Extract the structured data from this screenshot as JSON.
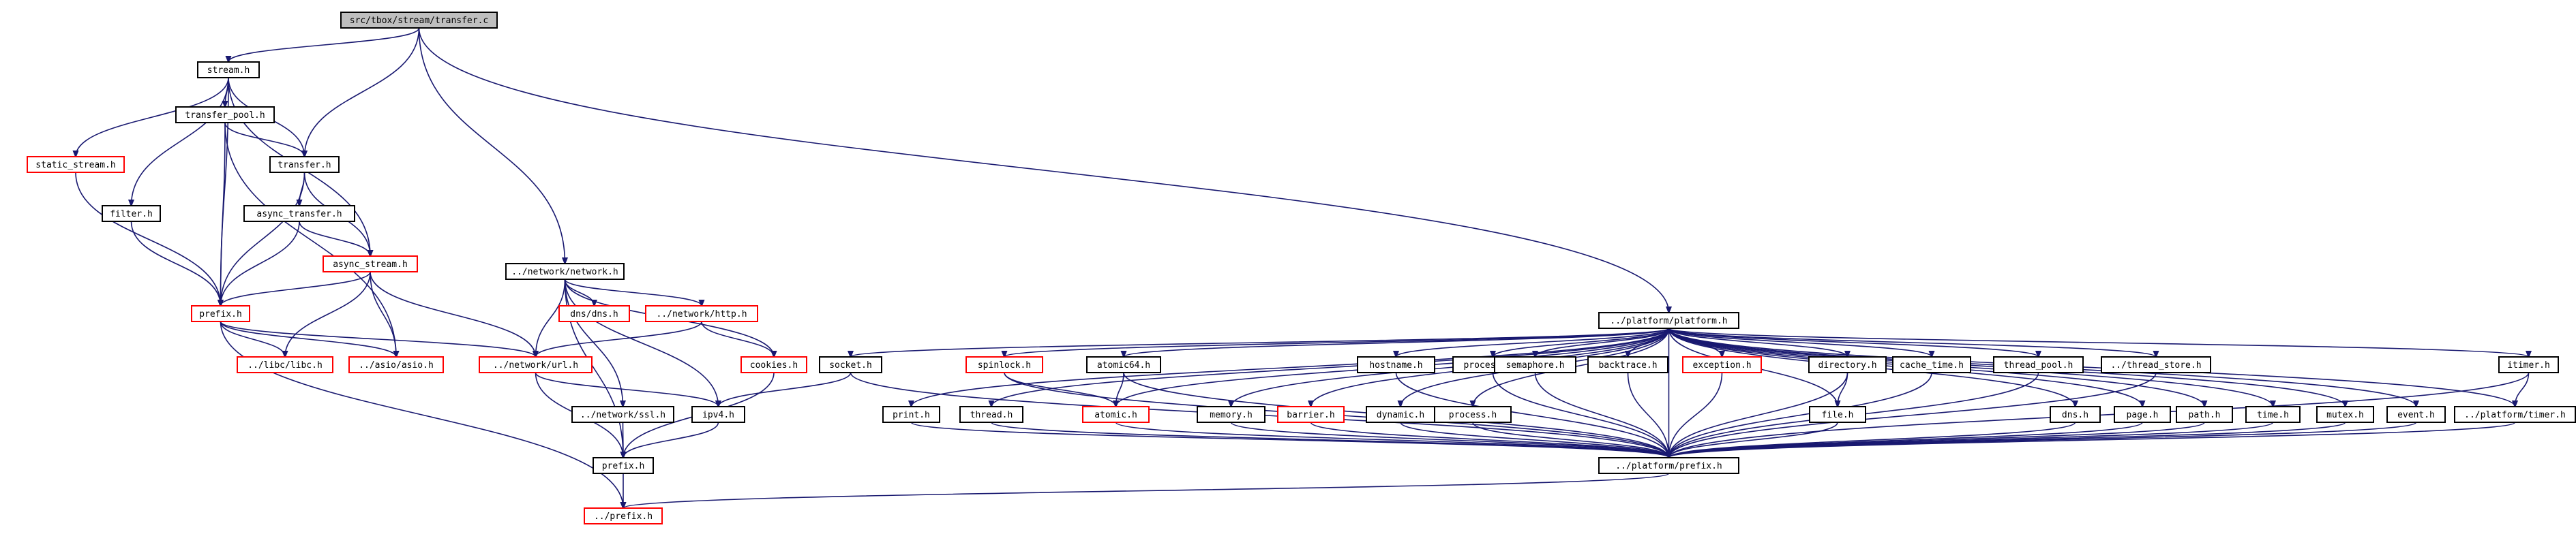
{
  "nodes": [
    {
      "id": "root",
      "label": "src/tbox/stream/transfer.c",
      "style": "root"
    },
    {
      "id": "stream",
      "label": "stream.h",
      "style": "normal"
    },
    {
      "id": "network",
      "label": "../network/network.h",
      "style": "normal"
    },
    {
      "id": "platform",
      "label": "../platform/platform.h",
      "style": "normal"
    },
    {
      "id": "transfer_pool",
      "label": "transfer_pool.h",
      "style": "normal"
    },
    {
      "id": "static_stream",
      "label": "static_stream.h",
      "style": "red"
    },
    {
      "id": "transfer",
      "label": "transfer.h",
      "style": "normal"
    },
    {
      "id": "filter",
      "label": "filter.h",
      "style": "normal"
    },
    {
      "id": "async_transfer",
      "label": "async_transfer.h",
      "style": "normal"
    },
    {
      "id": "async_stream",
      "label": "async_stream.h",
      "style": "red"
    },
    {
      "id": "prefix",
      "label": "prefix.h",
      "style": "red"
    },
    {
      "id": "libc",
      "label": "../libc/libc.h",
      "style": "red"
    },
    {
      "id": "asio",
      "label": "../asio/asio.h",
      "style": "red"
    },
    {
      "id": "url",
      "label": "../network/url.h",
      "style": "red"
    },
    {
      "id": "dns_net",
      "label": "dns/dns.h",
      "style": "red"
    },
    {
      "id": "http",
      "label": "../network/http.h",
      "style": "red"
    },
    {
      "id": "cookies",
      "label": "cookies.h",
      "style": "red"
    },
    {
      "id": "ssl",
      "label": "../network/ssl.h",
      "style": "normal"
    },
    {
      "id": "ipv4",
      "label": "ipv4.h",
      "style": "normal"
    },
    {
      "id": "net_prefix",
      "label": "prefix.h",
      "style": "normal"
    },
    {
      "id": "top_prefix",
      "label": "../prefix.h",
      "style": "red"
    },
    {
      "id": "socket",
      "label": "socket.h",
      "style": "normal"
    },
    {
      "id": "print",
      "label": "print.h",
      "style": "normal"
    },
    {
      "id": "spinlock",
      "label": "spinlock.h",
      "style": "red"
    },
    {
      "id": "thread",
      "label": "thread.h",
      "style": "normal"
    },
    {
      "id": "atomic64",
      "label": "atomic64.h",
      "style": "normal"
    },
    {
      "id": "atomic",
      "label": "atomic.h",
      "style": "red"
    },
    {
      "id": "memory",
      "label": "memory.h",
      "style": "normal"
    },
    {
      "id": "hostname",
      "label": "hostname.h",
      "style": "normal"
    },
    {
      "id": "barrier",
      "label": "barrier.h",
      "style": "red"
    },
    {
      "id": "dynamic",
      "label": "dynamic.h",
      "style": "normal"
    },
    {
      "id": "processor",
      "label": "processor.h",
      "style": "normal"
    },
    {
      "id": "process",
      "label": "process.h",
      "style": "normal"
    },
    {
      "id": "semaphore",
      "label": "semaphore.h",
      "style": "normal"
    },
    {
      "id": "backtrace",
      "label": "backtrace.h",
      "style": "normal"
    },
    {
      "id": "exception",
      "label": "exception.h",
      "style": "red"
    },
    {
      "id": "directory",
      "label": "directory.h",
      "style": "normal"
    },
    {
      "id": "file",
      "label": "file.h",
      "style": "normal"
    },
    {
      "id": "cache_time",
      "label": "cache_time.h",
      "style": "normal"
    },
    {
      "id": "thread_pool",
      "label": "thread_pool.h",
      "style": "normal"
    },
    {
      "id": "thread_store",
      "label": "../thread_store.h",
      "style": "normal"
    },
    {
      "id": "dns_plat",
      "label": "dns.h",
      "style": "normal"
    },
    {
      "id": "page",
      "label": "page.h",
      "style": "normal"
    },
    {
      "id": "path",
      "label": "path.h",
      "style": "normal"
    },
    {
      "id": "time",
      "label": "time.h",
      "style": "normal"
    },
    {
      "id": "mutex",
      "label": "mutex.h",
      "style": "normal"
    },
    {
      "id": "event",
      "label": "event.h",
      "style": "normal"
    },
    {
      "id": "itimer",
      "label": "itimer.h",
      "style": "normal"
    },
    {
      "id": "plat_timer",
      "label": "../platform/timer.h",
      "style": "normal"
    },
    {
      "id": "plat_prefix",
      "label": "../platform/prefix.h",
      "style": "normal"
    }
  ],
  "edges": [
    [
      "root",
      "stream"
    ],
    [
      "root",
      "transfer"
    ],
    [
      "root",
      "network"
    ],
    [
      "root",
      "platform"
    ],
    [
      "stream",
      "transfer_pool"
    ],
    [
      "stream",
      "static_stream"
    ],
    [
      "stream",
      "transfer"
    ],
    [
      "stream",
      "filter"
    ],
    [
      "stream",
      "async_stream"
    ],
    [
      "stream",
      "prefix"
    ],
    [
      "transfer_pool",
      "transfer"
    ],
    [
      "transfer_pool",
      "prefix"
    ],
    [
      "transfer_pool",
      "asio"
    ],
    [
      "static_stream",
      "prefix"
    ],
    [
      "filter",
      "prefix"
    ],
    [
      "transfer",
      "async_transfer"
    ],
    [
      "transfer",
      "async_stream"
    ],
    [
      "transfer",
      "prefix"
    ],
    [
      "async_transfer",
      "async_stream"
    ],
    [
      "async_transfer",
      "prefix"
    ],
    [
      "async_stream",
      "prefix"
    ],
    [
      "async_stream",
      "libc"
    ],
    [
      "async_stream",
      "asio"
    ],
    [
      "async_stream",
      "url"
    ],
    [
      "prefix",
      "libc"
    ],
    [
      "prefix",
      "asio"
    ],
    [
      "prefix",
      "url"
    ],
    [
      "prefix",
      "top_prefix"
    ],
    [
      "network",
      "dns_net"
    ],
    [
      "network",
      "http"
    ],
    [
      "network",
      "cookies"
    ],
    [
      "network",
      "url"
    ],
    [
      "network",
      "ssl"
    ],
    [
      "network",
      "ipv4"
    ],
    [
      "network",
      "net_prefix"
    ],
    [
      "http",
      "url"
    ],
    [
      "http",
      "cookies"
    ],
    [
      "url",
      "ipv4"
    ],
    [
      "url",
      "net_prefix"
    ],
    [
      "cookies",
      "net_prefix"
    ],
    [
      "ssl",
      "net_prefix"
    ],
    [
      "ipv4",
      "net_prefix"
    ],
    [
      "net_prefix",
      "top_prefix"
    ],
    [
      "socket",
      "ipv4"
    ],
    [
      "socket",
      "plat_prefix"
    ],
    [
      "platform",
      "socket"
    ],
    [
      "platform",
      "print"
    ],
    [
      "platform",
      "spinlock"
    ],
    [
      "platform",
      "thread"
    ],
    [
      "platform",
      "atomic64"
    ],
    [
      "platform",
      "atomic"
    ],
    [
      "platform",
      "memory"
    ],
    [
      "platform",
      "hostname"
    ],
    [
      "platform",
      "barrier"
    ],
    [
      "platform",
      "dynamic"
    ],
    [
      "platform",
      "processor"
    ],
    [
      "platform",
      "process"
    ],
    [
      "platform",
      "semaphore"
    ],
    [
      "platform",
      "backtrace"
    ],
    [
      "platform",
      "exception"
    ],
    [
      "platform",
      "directory"
    ],
    [
      "platform",
      "file"
    ],
    [
      "platform",
      "cache_time"
    ],
    [
      "platform",
      "thread_pool"
    ],
    [
      "platform",
      "thread_store"
    ],
    [
      "platform",
      "dns_plat"
    ],
    [
      "platform",
      "page"
    ],
    [
      "platform",
      "path"
    ],
    [
      "platform",
      "time"
    ],
    [
      "platform",
      "mutex"
    ],
    [
      "platform",
      "event"
    ],
    [
      "platform",
      "itimer"
    ],
    [
      "platform",
      "plat_timer"
    ],
    [
      "platform",
      "plat_prefix"
    ],
    [
      "spinlock",
      "atomic"
    ],
    [
      "spinlock",
      "plat_prefix"
    ],
    [
      "atomic64",
      "atomic"
    ],
    [
      "atomic64",
      "plat_prefix"
    ],
    [
      "directory",
      "file"
    ],
    [
      "directory",
      "plat_prefix"
    ],
    [
      "itimer",
      "plat_timer"
    ],
    [
      "itimer",
      "plat_prefix"
    ],
    [
      "print",
      "plat_prefix"
    ],
    [
      "thread",
      "plat_prefix"
    ],
    [
      "atomic",
      "plat_prefix"
    ],
    [
      "memory",
      "plat_prefix"
    ],
    [
      "hostname",
      "plat_prefix"
    ],
    [
      "barrier",
      "plat_prefix"
    ],
    [
      "dynamic",
      "plat_prefix"
    ],
    [
      "processor",
      "plat_prefix"
    ],
    [
      "process",
      "plat_prefix"
    ],
    [
      "semaphore",
      "plat_prefix"
    ],
    [
      "backtrace",
      "plat_prefix"
    ],
    [
      "exception",
      "plat_prefix"
    ],
    [
      "file",
      "plat_prefix"
    ],
    [
      "cache_time",
      "plat_prefix"
    ],
    [
      "thread_pool",
      "plat_prefix"
    ],
    [
      "thread_store",
      "plat_prefix"
    ],
    [
      "dns_plat",
      "plat_prefix"
    ],
    [
      "page",
      "plat_prefix"
    ],
    [
      "path",
      "plat_prefix"
    ],
    [
      "time",
      "plat_prefix"
    ],
    [
      "mutex",
      "plat_prefix"
    ],
    [
      "event",
      "plat_prefix"
    ],
    [
      "plat_timer",
      "plat_prefix"
    ],
    [
      "plat_prefix",
      "top_prefix"
    ]
  ],
  "colors": {
    "edge": "#191970",
    "node_border": "#000000",
    "highlight_border": "#ff0000",
    "root_fill": "#bfbfbf"
  }
}
